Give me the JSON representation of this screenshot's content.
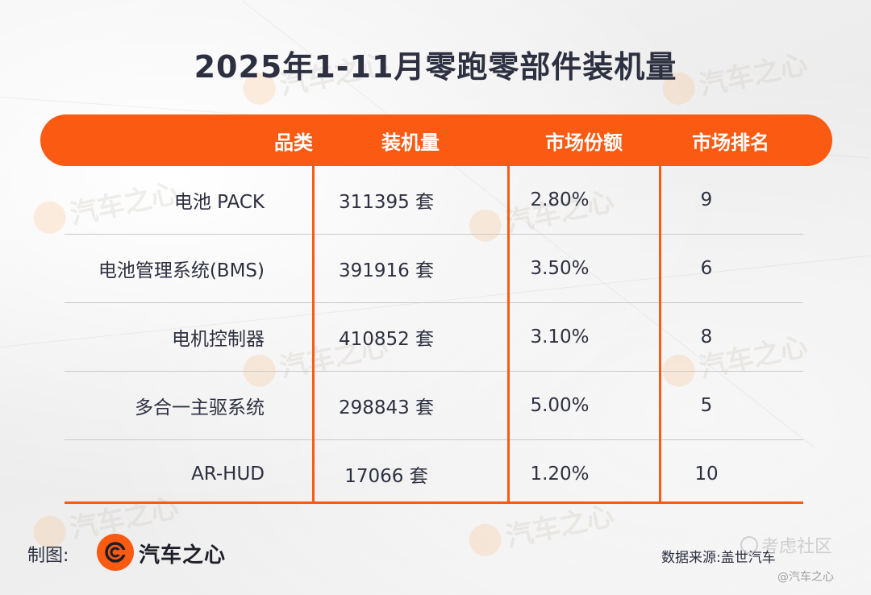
{
  "title": "2025年1-11月零跑零部件装机量",
  "colors": {
    "accent": "#fa5a12",
    "text": "#2d3040"
  },
  "table": {
    "headers": [
      "品类",
      "装机量",
      "市场份额",
      "市场排名"
    ],
    "rows": [
      {
        "category": "电池 PACK",
        "volume": "311395 套",
        "share": "2.80%",
        "rank": "9"
      },
      {
        "category": "电池管理系统(BMS)",
        "volume": "391916 套",
        "share": "3.50%",
        "rank": "6"
      },
      {
        "category": "电机控制器",
        "volume": "410852 套",
        "share": "3.10%",
        "rank": "8"
      },
      {
        "category": "多合一主驱系统",
        "volume": "298843 套",
        "share": "5.00%",
        "rank": "5"
      },
      {
        "category": "AR-HUD",
        "volume": "17066 套",
        "share": "1.20%",
        "rank": "10"
      }
    ]
  },
  "footer": {
    "made_by_label": "制图:",
    "logo_text": "汽车之心",
    "source": "数据来源:盖世汽车"
  },
  "watermark": {
    "text": "汽车之心",
    "corner_text": "考虑社区",
    "corner_sub": "@汽车之心"
  },
  "icons": {
    "brand_logo": "qichezhixin-logo-icon",
    "watermark_logo": "watermark-logo-icon"
  }
}
